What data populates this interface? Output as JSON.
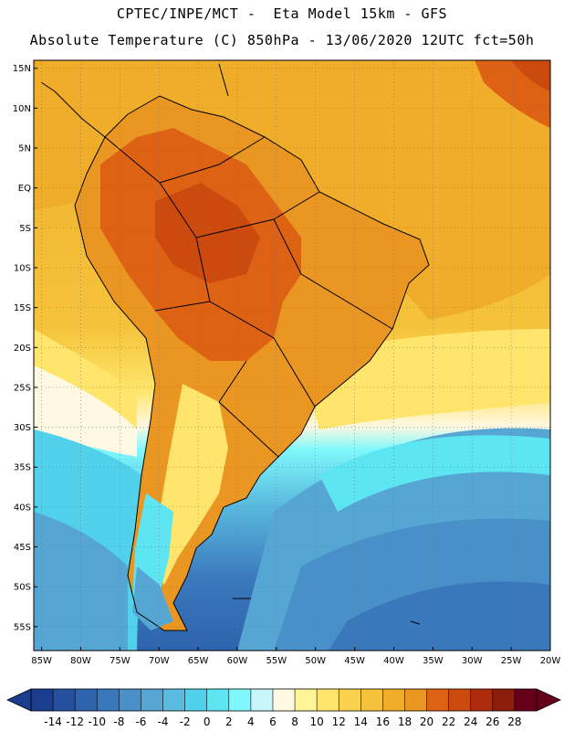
{
  "header": {
    "line1": "CPTEC/INPE/MCT -  Eta Model 15km - GFS",
    "line2": "Absolute Temperature (C) 850hPa - 13/06/2020 12UTC fct=50h"
  },
  "map": {
    "lat_labels": [
      "15N",
      "10N",
      "5N",
      "EQ",
      "5S",
      "10S",
      "15S",
      "20S",
      "25S",
      "30S",
      "35S",
      "40S",
      "45S",
      "50S",
      "55S"
    ],
    "lon_labels": [
      "85W",
      "80W",
      "75W",
      "70W",
      "65W",
      "60W",
      "55W",
      "50W",
      "45W",
      "40W",
      "35W",
      "30W",
      "25W",
      "20W"
    ],
    "lat_range": [
      -58,
      16
    ],
    "lon_range": [
      -86,
      -20
    ],
    "grid": "dotted"
  },
  "colorbar": {
    "labels": [
      "-14",
      "-12",
      "-10",
      "-8",
      "-6",
      "-4",
      "-2",
      "0",
      "2",
      "4",
      "6",
      "8",
      "10",
      "12",
      "14",
      "16",
      "18",
      "20",
      "22",
      "24",
      "26",
      "28"
    ],
    "colors": [
      "#1b3d8f",
      "#24509e",
      "#2e64ad",
      "#3a78bc",
      "#4990c8",
      "#56a6d3",
      "#5bbcdf",
      "#52d2ea",
      "#5de6f2",
      "#7ff8fc",
      "#c9f6fb",
      "#fff8e2",
      "#fff598",
      "#ffe56c",
      "#fbd24e",
      "#f5c33a",
      "#efad2a",
      "#ea9623",
      "#de6214",
      "#cd4a0f",
      "#ac2c0d",
      "#8a1d0c",
      "#660018"
    ]
  }
}
